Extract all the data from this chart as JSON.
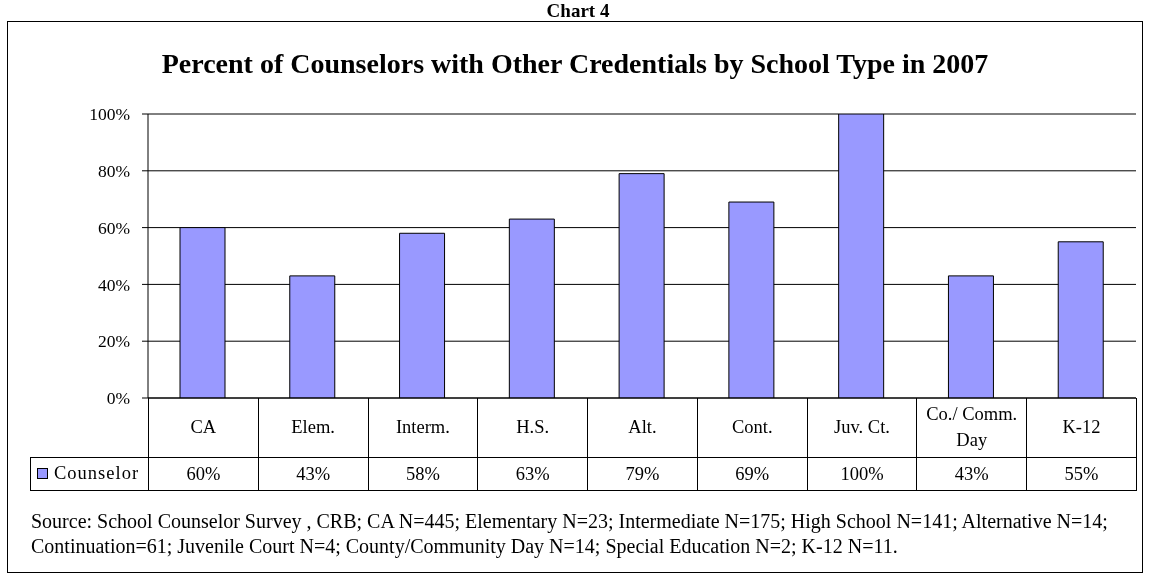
{
  "chart_data": {
    "type": "bar",
    "title": "Percent of Counselors with Other Credentials by School Type in 2007",
    "categories": [
      "CA",
      "Elem.",
      "Interm.",
      "H.S.",
      "Alt.",
      "Cont.",
      "Juv. Ct.",
      "Co./ Comm. Day",
      "K-12"
    ],
    "series": [
      {
        "name": "Counselor",
        "color": "#9999ff",
        "values": [
          60,
          43,
          58,
          63,
          79,
          69,
          100,
          43,
          55
        ],
        "value_labels": [
          "60%",
          "43%",
          "58%",
          "63%",
          "79%",
          "69%",
          "100%",
          "43%",
          "55%"
        ]
      }
    ],
    "ylim": [
      0,
      100
    ],
    "yticks": [
      {
        "value": 0,
        "label": "0%"
      },
      {
        "value": 20,
        "label": "20%"
      },
      {
        "value": 40,
        "label": "40%"
      },
      {
        "value": 60,
        "label": "60%"
      },
      {
        "value": 80,
        "label": "80%"
      },
      {
        "value": 100,
        "label": "100%"
      }
    ],
    "grid": "y",
    "legend": "bottom",
    "annotations": [
      "Chart 4",
      "Source: School Counselor Survey , CRB; CA N=445; Elementary N=23; Intermediate N=175; High School N=141; Alternative N=14; Continuation=61; Juvenile Court N=4; County/Community Day N=14; Special Education N=2; K-12 N=11."
    ]
  }
}
